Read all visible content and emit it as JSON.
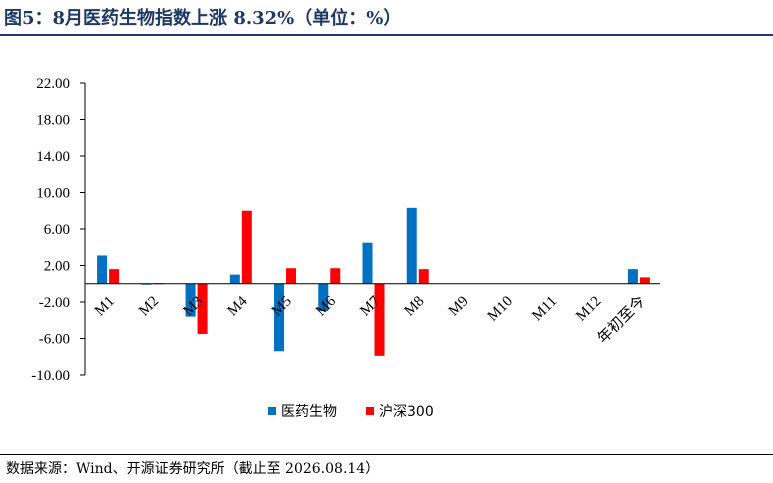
{
  "header": {
    "title": "图5：8月医药生物指数上涨 8.32%（单位：%）"
  },
  "footer": {
    "source": "数据来源：Wind、开源证券研究所（截止至 2026.08.14）"
  },
  "colors": {
    "series1": "#0070c0",
    "series2": "#ff0000",
    "header": "#1f3864"
  },
  "chart_data": {
    "type": "bar",
    "categories": [
      "M1",
      "M2",
      "M3",
      "M4",
      "M5",
      "M6",
      "M7",
      "M8",
      "M9",
      "M10",
      "M11",
      "M12",
      "年初至今"
    ],
    "series": [
      {
        "name": "医药生物",
        "values": [
          3.1,
          -0.1,
          -3.6,
          1.0,
          -7.4,
          -3.0,
          4.5,
          8.32,
          null,
          null,
          null,
          null,
          1.6
        ]
      },
      {
        "name": "沪深300",
        "values": [
          1.6,
          0.05,
          -5.5,
          8.0,
          1.7,
          1.7,
          -7.9,
          1.6,
          null,
          null,
          null,
          null,
          0.7
        ]
      }
    ],
    "yticks": [
      "22.00",
      "18.00",
      "14.00",
      "10.00",
      "6.00",
      "2.00",
      "-2.00",
      "-6.00",
      "-10.00"
    ],
    "ylim": [
      -10,
      22
    ],
    "xlabel": "",
    "ylabel": "",
    "grid": false,
    "legend_position": "bottom"
  }
}
